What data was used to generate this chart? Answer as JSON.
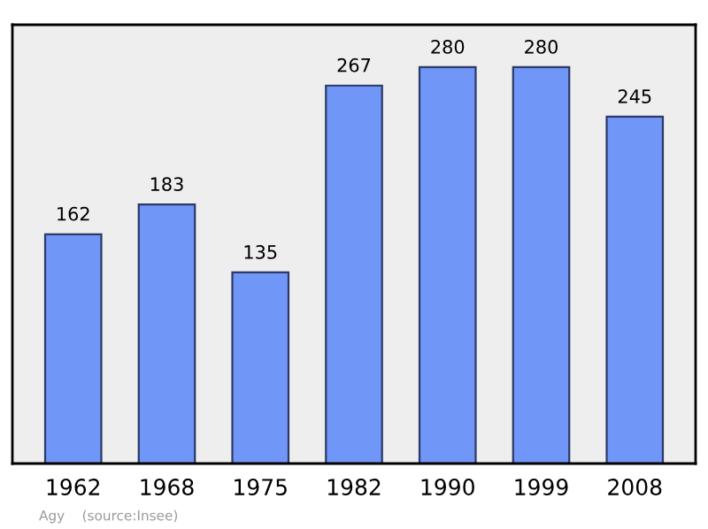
{
  "chart_data": {
    "type": "bar",
    "categories": [
      "1962",
      "1968",
      "1975",
      "1982",
      "1990",
      "1999",
      "2008"
    ],
    "values": [
      162,
      183,
      135,
      267,
      280,
      280,
      245
    ],
    "color": "#7096f8",
    "data_labels": true,
    "grid": false,
    "legend": false,
    "annotations": [
      "Agy    (source:Insee)"
    ]
  }
}
